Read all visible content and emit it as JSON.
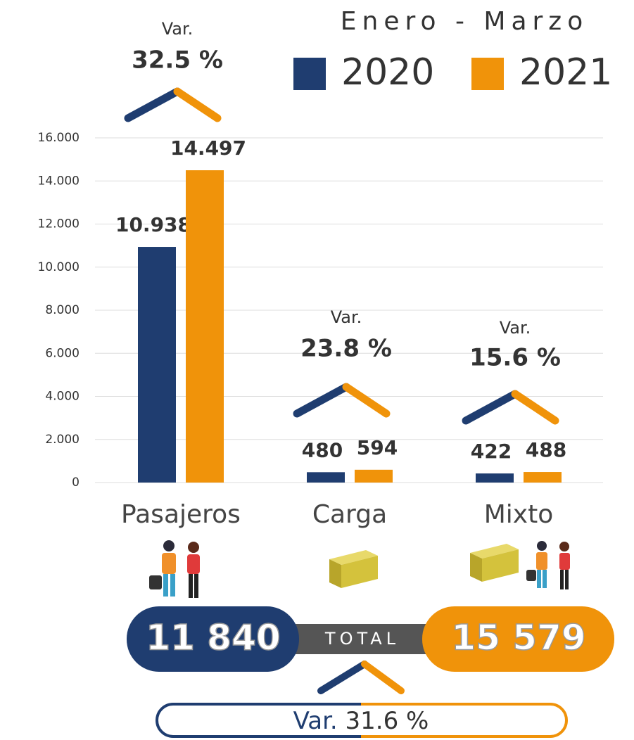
{
  "chart_data": {
    "type": "bar",
    "title": "Enero - Marzo",
    "categories": [
      "Pasajeros",
      "Carga",
      "Mixto"
    ],
    "series": [
      {
        "name": "2020",
        "color": "#1f3d70",
        "values": [
          10938,
          480,
          422
        ],
        "value_labels": [
          "10.938",
          "480",
          "422"
        ]
      },
      {
        "name": "2021",
        "color": "#f0930a",
        "values": [
          14497,
          594,
          488
        ],
        "value_labels": [
          "14.497",
          "594",
          "488"
        ]
      }
    ],
    "ylim": [
      0,
      16000
    ],
    "yticks": [
      0,
      {
        "value": 2000,
        "label": "2.000"
      },
      {
        "value": 4000,
        "label": "4.000"
      },
      {
        "value": 6000,
        "label": "6.000"
      },
      {
        "value": 8000,
        "label": "8.000"
      },
      {
        "value": 10000,
        "label": "10.000"
      },
      {
        "value": 12000,
        "label": "12.000"
      },
      {
        "value": 14000,
        "label": "14.000"
      },
      {
        "value": 16000,
        "label": "16.000"
      }
    ],
    "grid": true,
    "variations": [
      {
        "label": "Var.",
        "value": "32.5 %"
      },
      {
        "label": "Var.",
        "value": "23.8 %"
      },
      {
        "label": "Var.",
        "value": "15.6 %"
      }
    ],
    "totals": {
      "label": "TOTAL",
      "items": [
        "11 840",
        "15 579"
      ]
    },
    "total_variation": {
      "prefix": "Var.",
      "value": "31.6 %"
    }
  }
}
